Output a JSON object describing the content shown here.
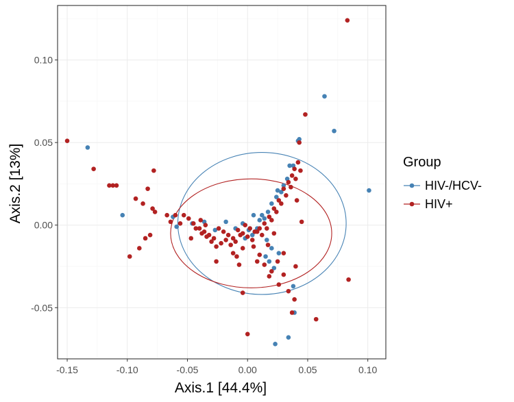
{
  "chart_data": {
    "type": "scatter",
    "xlabel": "Axis.1   [44.4%]",
    "ylabel": "Axis.2   [13%]",
    "xlim": [
      -0.158,
      0.115
    ],
    "ylim": [
      -0.081,
      0.133
    ],
    "x_ticks": [
      -0.15,
      -0.1,
      -0.05,
      0.0,
      0.05,
      0.1
    ],
    "x_tick_labels": [
      "-0.15",
      "-0.10",
      "-0.05",
      "0.00",
      "0.05",
      "0.10"
    ],
    "y_ticks": [
      -0.05,
      0.0,
      0.05,
      0.1
    ],
    "y_tick_labels": [
      "-0.05",
      "0.00",
      "0.05",
      "0.10"
    ],
    "grid": true,
    "legend": {
      "title": "Group",
      "placement": "right",
      "entries": [
        "HIV-/HCV-",
        "HIV+"
      ]
    },
    "series": [
      {
        "name": "HIV-/HCV-",
        "color": "#4682b4",
        "ellipse": {
          "cx": 0.012,
          "cy": 0.001,
          "rx": 0.07,
          "ry": 0.043,
          "angle_deg": 0
        },
        "points": [
          [
            -0.133,
            0.047
          ],
          [
            -0.104,
            0.006
          ],
          [
            0.064,
            0.078
          ],
          [
            0.072,
            0.057
          ],
          [
            0.101,
            0.021
          ],
          [
            0.043,
            0.052
          ],
          [
            0.042,
            0.051
          ],
          [
            0.035,
            0.036
          ],
          [
            0.038,
            0.036
          ],
          [
            0.033,
            0.028
          ],
          [
            0.028,
            0.02
          ],
          [
            0.024,
            0.017
          ],
          [
            0.02,
            0.013
          ],
          [
            0.017,
            0.008
          ],
          [
            0.014,
            0.004
          ],
          [
            0.012,
            0.006
          ],
          [
            0.01,
            0.003
          ],
          [
            0.008,
            -0.002
          ],
          [
            0.006,
            -0.004
          ],
          [
            0.004,
            -0.006
          ],
          [
            0.001,
            -0.003
          ],
          [
            -0.004,
            0.001
          ],
          [
            -0.01,
            -0.002
          ],
          [
            -0.018,
            0.002
          ],
          [
            -0.027,
            -0.003
          ],
          [
            -0.036,
            0.002
          ],
          [
            -0.046,
            0.001
          ],
          [
            -0.059,
            -0.001
          ],
          [
            -0.062,
            0.005
          ],
          [
            0.016,
            -0.009
          ],
          [
            0.02,
            -0.014
          ],
          [
            0.015,
            -0.019
          ],
          [
            0.026,
            -0.017
          ],
          [
            0.018,
            -0.022
          ],
          [
            0.022,
            -0.026
          ],
          [
            0.038,
            -0.037
          ],
          [
            0.039,
            -0.053
          ],
          [
            0.034,
            -0.068
          ],
          [
            0.023,
            -0.072
          ],
          [
            0.025,
            0.021
          ],
          [
            0.03,
            0.024
          ],
          [
            0.005,
            0.006
          ],
          [
            -0.002,
            -0.008
          ]
        ]
      },
      {
        "name": "HIV+",
        "color": "#b22222",
        "ellipse": {
          "cx": 0.003,
          "cy": -0.005,
          "rx": 0.067,
          "ry": 0.033,
          "angle_deg": 0
        },
        "points": [
          [
            -0.15,
            0.051
          ],
          [
            -0.128,
            0.034
          ],
          [
            -0.115,
            0.024
          ],
          [
            -0.112,
            0.024
          ],
          [
            -0.109,
            0.024
          ],
          [
            -0.093,
            0.016
          ],
          [
            -0.087,
            0.013
          ],
          [
            -0.078,
            0.033
          ],
          [
            -0.083,
            0.022
          ],
          [
            -0.079,
            0.01
          ],
          [
            -0.077,
            0.008
          ],
          [
            -0.067,
            0.006
          ],
          [
            -0.064,
            0.002
          ],
          [
            -0.056,
            0.001
          ],
          [
            -0.053,
            0.006
          ],
          [
            -0.049,
            0.004
          ],
          [
            -0.045,
            0.001
          ],
          [
            -0.04,
            -0.002
          ],
          [
            -0.036,
            -0.004
          ],
          [
            -0.032,
            -0.006
          ],
          [
            -0.028,
            -0.008
          ],
          [
            -0.024,
            -0.002
          ],
          [
            -0.02,
            -0.004
          ],
          [
            -0.016,
            -0.006
          ],
          [
            -0.012,
            -0.008
          ],
          [
            -0.008,
            -0.003
          ],
          [
            -0.004,
            -0.005
          ],
          [
            0.0,
            -0.007
          ],
          [
            0.004,
            -0.009
          ],
          [
            0.008,
            -0.004
          ],
          [
            0.012,
            -0.006
          ],
          [
            0.016,
            -0.002
          ],
          [
            0.02,
            0.003
          ],
          [
            0.024,
            0.008
          ],
          [
            0.028,
            0.013
          ],
          [
            0.032,
            0.018
          ],
          [
            0.036,
            0.023
          ],
          [
            0.04,
            0.028
          ],
          [
            0.044,
            0.033
          ],
          [
            0.048,
            0.067
          ],
          [
            0.043,
            0.05
          ],
          [
            0.042,
            0.038
          ],
          [
            0.039,
            0.034
          ],
          [
            0.037,
            0.03
          ],
          [
            0.034,
            0.026
          ],
          [
            0.03,
            0.022
          ],
          [
            0.026,
            0.015
          ],
          [
            0.022,
            0.01
          ],
          [
            0.018,
            0.005
          ],
          [
            0.014,
            0.001
          ],
          [
            0.01,
            -0.002
          ],
          [
            0.006,
            -0.004
          ],
          [
            0.002,
            -0.002
          ],
          [
            -0.002,
            0.0
          ],
          [
            -0.006,
            -0.006
          ],
          [
            -0.01,
            -0.01
          ],
          [
            -0.014,
            -0.012
          ],
          [
            -0.018,
            -0.009
          ],
          [
            -0.022,
            -0.011
          ],
          [
            -0.026,
            -0.013
          ],
          [
            -0.03,
            -0.01
          ],
          [
            -0.034,
            -0.007
          ],
          [
            -0.038,
            -0.005
          ],
          [
            -0.043,
            -0.002
          ],
          [
            -0.098,
            -0.019
          ],
          [
            -0.09,
            -0.014
          ],
          [
            -0.085,
            -0.008
          ],
          [
            -0.081,
            -0.006
          ],
          [
            -0.026,
            -0.022
          ],
          [
            -0.012,
            -0.017
          ],
          [
            -0.004,
            -0.014
          ],
          [
            -0.007,
            -0.024
          ],
          [
            0.008,
            -0.022
          ],
          [
            0.01,
            -0.018
          ],
          [
            0.014,
            -0.024
          ],
          [
            0.02,
            -0.028
          ],
          [
            0.025,
            -0.022
          ],
          [
            0.03,
            -0.03
          ],
          [
            0.034,
            -0.04
          ],
          [
            0.039,
            -0.045
          ],
          [
            0.037,
            -0.053
          ],
          [
            0.057,
            -0.057
          ],
          [
            0.084,
            -0.033
          ],
          [
            0.083,
            0.124
          ],
          [
            0.04,
            -0.025
          ],
          [
            0.045,
            0.002
          ],
          [
            0.041,
            0.015
          ],
          [
            -0.004,
            -0.041
          ],
          [
            0.0,
            -0.066
          ],
          [
            0.018,
            -0.031
          ],
          [
            0.026,
            -0.036
          ],
          [
            0.03,
            -0.017
          ],
          [
            0.022,
            -0.005
          ],
          [
            0.017,
            -0.012
          ],
          [
            0.005,
            -0.013
          ],
          [
            -0.009,
            -0.019
          ],
          [
            -0.047,
            -0.008
          ],
          [
            -0.06,
            0.006
          ],
          [
            -0.039,
            0.003
          ],
          [
            -0.035,
            0.0
          ]
        ]
      }
    ]
  }
}
